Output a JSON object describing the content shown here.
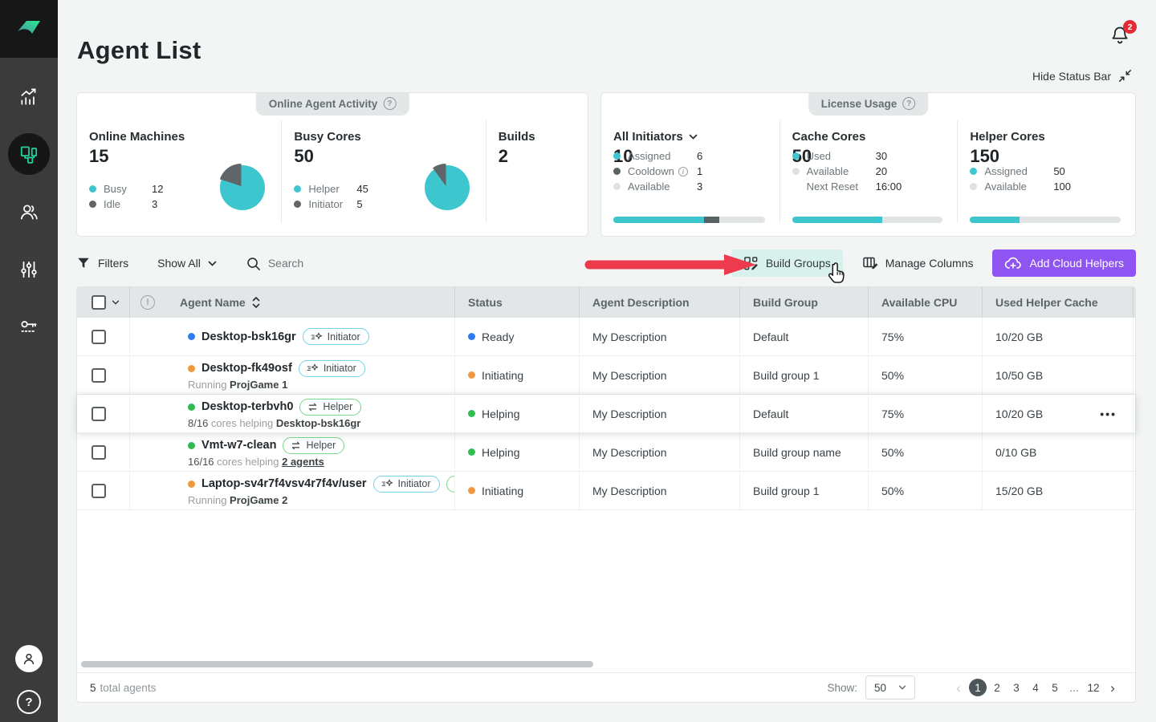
{
  "colors": {
    "accent_teal": "#3ec6ce",
    "accent_green": "#22d3a0",
    "purple": "#8e55f2",
    "annotation_red": "#ee3a4d",
    "status_blue": "#2e7df0",
    "status_orange": "#f09a40",
    "status_green": "#2fbd52",
    "slice_gray": "#5f6569",
    "track_gray": "#e0e4e5"
  },
  "sidebar": {
    "items": [
      {
        "icon": "bar-chart-icon"
      },
      {
        "icon": "agents-machines-icon",
        "active": true
      },
      {
        "icon": "users-icon"
      },
      {
        "icon": "sliders-icon"
      },
      {
        "icon": "license-key-icon"
      }
    ]
  },
  "header": {
    "title": "Agent List",
    "notification_count": "2",
    "hide_status_bar_label": "Hide Status Bar"
  },
  "activity_panel": {
    "title": "Online Agent Activity",
    "sections": [
      {
        "label": "Online Machines",
        "value": "15",
        "legend": [
          {
            "name": "Busy",
            "value": "12",
            "color": "#3ec6ce"
          },
          {
            "name": "Idle",
            "value": "3",
            "color": "#5f6569"
          }
        ],
        "pie": {
          "main_color": "#3ec6ce",
          "slice_color": "#5f6569",
          "slice_pct": 20
        }
      },
      {
        "label": "Busy Cores",
        "value": "50",
        "legend": [
          {
            "name": "Helper",
            "value": "45",
            "color": "#3ec6ce"
          },
          {
            "name": "Initiator",
            "value": "5",
            "color": "#5f6569"
          }
        ],
        "pie": {
          "main_color": "#3ec6ce",
          "slice_color": "#5f6569",
          "slice_pct": 10
        }
      },
      {
        "label": "Builds",
        "value": "2"
      }
    ]
  },
  "license_panel": {
    "title": "License Usage",
    "sections": [
      {
        "label": "All Initiators",
        "value": "10",
        "legend": [
          {
            "name": "Assigned",
            "value": "6",
            "color": "#3ec6ce"
          },
          {
            "name": "Cooldown",
            "value": "1",
            "color": "#5a6165",
            "info": true
          },
          {
            "name": "Available",
            "value": "3",
            "color": "#dde2e3"
          }
        ],
        "bar": [
          {
            "color": "#3ec6ce",
            "pct": 60
          },
          {
            "color": "#5a6165",
            "pct": 10
          }
        ]
      },
      {
        "label": "Cache Cores",
        "value": "50",
        "legend": [
          {
            "name": "Used",
            "value": "30",
            "color": "#3ec6ce"
          },
          {
            "name": "Available",
            "value": "20",
            "color": "#dde2e3"
          },
          {
            "name": "Next Reset",
            "value": "16:00",
            "no_dot": true
          }
        ],
        "bar": [
          {
            "color": "#3ec6ce",
            "pct": 60
          }
        ]
      },
      {
        "label": "Helper Cores",
        "value": "150",
        "legend": [
          {
            "name": "Assigned",
            "value": "50",
            "color": "#3ec6ce"
          },
          {
            "name": "Available",
            "value": "100",
            "color": "#dde2e3"
          }
        ],
        "bar": [
          {
            "color": "#3ec6ce",
            "pct": 33
          }
        ]
      }
    ]
  },
  "toolbar": {
    "filters_label": "Filters",
    "show_filter_value": "Show All",
    "search_placeholder": "Search",
    "build_groups_label": "Build Groups",
    "manage_columns_label": "Manage Columns",
    "add_cloud_helpers_label": "Add Cloud Helpers"
  },
  "table": {
    "columns": {
      "agent_name": "Agent Name",
      "status": "Status",
      "description": "Agent Description",
      "build_group": "Build Group",
      "cpu": "Available CPU",
      "cache": "Used Helper Cache"
    },
    "rows": [
      {
        "name": "Desktop-bsk16gr",
        "dot_color": "#2e7df0",
        "badges": [
          {
            "kind": "initiator",
            "label": "Initiator"
          }
        ],
        "sub": [],
        "status": "Ready",
        "status_color": "#2e7df0",
        "description": "My Description",
        "build_group": "Default",
        "cpu": "75%",
        "cache": "10/20 GB"
      },
      {
        "name": "Desktop-fk49osf",
        "dot_color": "#f09a40",
        "badges": [
          {
            "kind": "initiator",
            "label": "Initiator"
          }
        ],
        "sub": [
          {
            "text": "Running ",
            "style": "muted"
          },
          {
            "text": "ProjGame 1",
            "style": "bold"
          }
        ],
        "status": "Initiating",
        "status_color": "#f09a40",
        "description": "My Description",
        "build_group": "Build group 1",
        "cpu": "50%",
        "cache": "10/50 GB"
      },
      {
        "name": "Desktop-terbvh0",
        "dot_color": "#2fbd52",
        "badges": [
          {
            "kind": "helper",
            "label": "Helper"
          }
        ],
        "sub": [
          {
            "text": "8/16",
            "style": "plain"
          },
          {
            "text": " cores helping ",
            "style": "muted"
          },
          {
            "text": "Desktop-bsk16gr",
            "style": "bold"
          }
        ],
        "status": "Helping",
        "status_color": "#2fbd52",
        "description": "My Description",
        "build_group": "Default",
        "cpu": "75%",
        "cache": "10/20 GB",
        "hovered": true,
        "has_menu": true
      },
      {
        "name": "Vmt-w7-clean",
        "dot_color": "#2fbd52",
        "badges": [
          {
            "kind": "helper",
            "label": "Helper"
          }
        ],
        "sub": [
          {
            "text": "16/16",
            "style": "plain"
          },
          {
            "text": " cores helping ",
            "style": "muted"
          },
          {
            "text": "2 agents",
            "style": "link"
          }
        ],
        "status": "Helping",
        "status_color": "#2fbd52",
        "description": "My Description",
        "build_group": "Build group name",
        "cpu": "50%",
        "cache": "0/10 GB"
      },
      {
        "name": "Laptop-sv4r7f4vsv4r7f4v/user",
        "dot_color": "#f09a40",
        "badges": [
          {
            "kind": "initiator",
            "label": "Initiator"
          },
          {
            "kind": "helper",
            "label": "Helper"
          }
        ],
        "sub": [
          {
            "text": "Running ",
            "style": "muted"
          },
          {
            "text": "ProjGame 2",
            "style": "bold"
          }
        ],
        "status": "Initiating",
        "status_color": "#f09a40",
        "description": "My Description",
        "build_group": "Build group 1",
        "cpu": "50%",
        "cache": "15/20 GB"
      }
    ]
  },
  "footer": {
    "total_count": "5",
    "total_label": "total agents",
    "show_label": "Show:",
    "page_size": "50",
    "pages": [
      "1",
      "2",
      "3",
      "4",
      "5",
      "...",
      "12"
    ],
    "active_page": "1"
  }
}
